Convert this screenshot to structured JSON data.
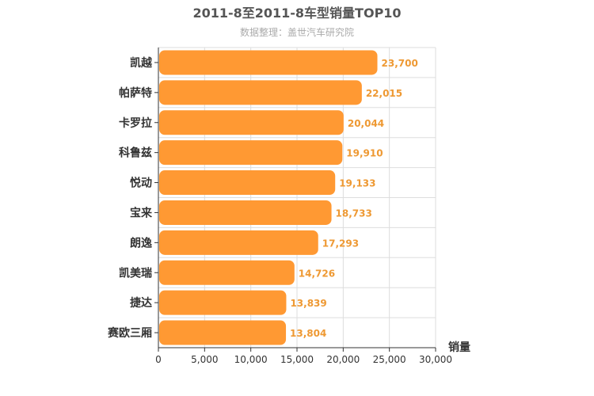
{
  "chart_data": {
    "type": "bar",
    "orientation": "horizontal",
    "title": "2011-8至2011-8车型销量TOP10",
    "subtitle": "数据整理：盖世汽车研究院",
    "xlabel": "销量",
    "ylabel": "",
    "xlim": [
      0,
      30000
    ],
    "ticks": [
      0,
      5000,
      10000,
      15000,
      20000,
      25000,
      30000
    ],
    "tick_labels": [
      "0",
      "5,000",
      "10,000",
      "15,000",
      "20,000",
      "25,000",
      "30,000"
    ],
    "categories": [
      "凯越",
      "帕萨特",
      "卡罗拉",
      "科鲁兹",
      "悦动",
      "宝来",
      "朗逸",
      "凯美瑞",
      "捷达",
      "赛欧三厢"
    ],
    "values": [
      23700,
      22015,
      20044,
      19910,
      19133,
      18733,
      17293,
      14726,
      13839,
      13804
    ],
    "value_labels": [
      "23,700",
      "22,015",
      "20,044",
      "19,910",
      "19,133",
      "18,733",
      "17,293",
      "14,726",
      "13,839",
      "13,804"
    ],
    "grid": true,
    "colors": {
      "bar": "#ff9933",
      "value_label": "#ee9933",
      "title": "#555555",
      "subtitle": "#aaaaaa",
      "axis": "#333333",
      "grid": "#dddddd"
    }
  }
}
